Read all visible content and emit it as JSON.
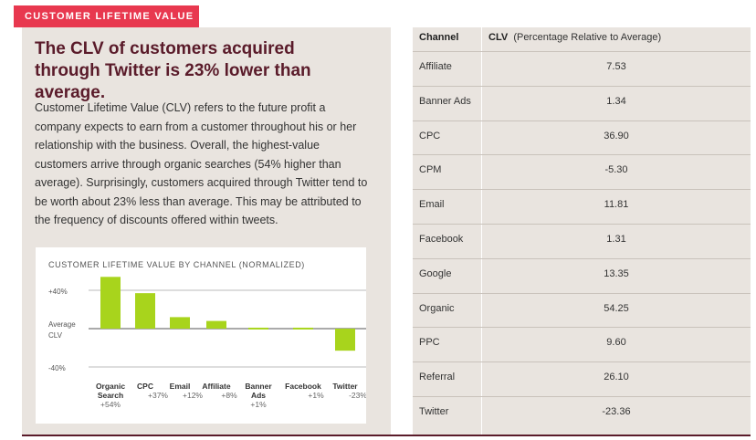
{
  "section_tag": "CUSTOMER LIFETIME VALUE",
  "headline": "The CLV of customers acquired through Twitter is 23% lower than average.",
  "body": "Customer Lifetime Value (CLV) refers to the future profit a company expects to earn from a customer throughout his or her relationship with the business. Overall, the highest-value customers arrive through organic searches (54% higher than average). Surprisingly, customers acquired through Twitter tend to be worth about 23% less than average. This may be attributed to the frequency of discounts offered within tweets.",
  "chart_data": {
    "type": "bar",
    "title": "CUSTOMER LIFETIME VALUE BY CHANNEL (NORMALIZED)",
    "y_tick_labels": [
      "+40%",
      "Average\nCLV",
      "-40%"
    ],
    "y_ticks": [
      40,
      0,
      -40
    ],
    "ylim": [
      -40,
      60
    ],
    "categories": [
      "Organic\nSearch",
      "CPC",
      "Email",
      "Affiliate",
      "Banner\nAds",
      "Facebook",
      "Twitter"
    ],
    "value_labels": [
      "+54%",
      "+37%",
      "+12%",
      "+8%",
      "+1%",
      "+1%",
      "-23%"
    ],
    "values": [
      54,
      37,
      12,
      8,
      1,
      1,
      -23
    ],
    "bar_color": "#a8d41c",
    "grid": true
  },
  "table": {
    "header_channel": "Channel",
    "header_clv": "CLV",
    "header_clv_note": "(Percentage Relative to Average)",
    "rows": [
      {
        "channel": "Affiliate",
        "clv": "7.53"
      },
      {
        "channel": "Banner Ads",
        "clv": "1.34"
      },
      {
        "channel": "CPC",
        "clv": "36.90"
      },
      {
        "channel": "CPM",
        "clv": "-5.30"
      },
      {
        "channel": "Email",
        "clv": "11.81"
      },
      {
        "channel": "Facebook",
        "clv": "1.31"
      },
      {
        "channel": "Google",
        "clv": "13.35"
      },
      {
        "channel": "Organic",
        "clv": "54.25"
      },
      {
        "channel": "PPC",
        "clv": "9.60"
      },
      {
        "channel": "Referral",
        "clv": "26.10"
      },
      {
        "channel": "Twitter",
        "clv": "-23.36"
      }
    ]
  },
  "colors": {
    "accent_red": "#e8384f",
    "headline_maroon": "#5a1b2a",
    "panel_beige": "#e9e4df",
    "bar_green": "#a8d41c"
  }
}
